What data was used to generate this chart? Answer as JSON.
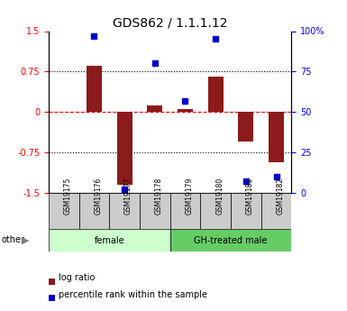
{
  "title": "GDS862 / 1.1.1.12",
  "samples": [
    "GSM19175",
    "GSM19176",
    "GSM19177",
    "GSM19178",
    "GSM19179",
    "GSM19180",
    "GSM19181",
    "GSM19182"
  ],
  "log_ratio": [
    0.0,
    0.85,
    -1.35,
    0.12,
    0.05,
    0.65,
    -0.55,
    -0.93
  ],
  "percentile_rank": [
    null,
    97,
    2,
    80,
    57,
    95,
    7,
    10
  ],
  "groups": [
    {
      "label": "female",
      "start": 0,
      "end": 4,
      "color": "#CCFFCC"
    },
    {
      "label": "GH-treated male",
      "start": 4,
      "end": 8,
      "color": "#66CC66"
    }
  ],
  "bar_color": "#8B1A1A",
  "point_color": "#0000CC",
  "ylim_left": [
    -1.5,
    1.5
  ],
  "ylim_right": [
    0,
    100
  ],
  "yticks_left": [
    -1.5,
    -0.75,
    0,
    0.75,
    1.5
  ],
  "yticks_right": [
    0,
    25,
    50,
    75,
    100
  ],
  "yticklabels_right": [
    "0",
    "25",
    "50",
    "75",
    "100%"
  ],
  "hline_y": [
    0.75,
    -0.75
  ],
  "zero_line_y": 0,
  "bar_width": 0.5
}
